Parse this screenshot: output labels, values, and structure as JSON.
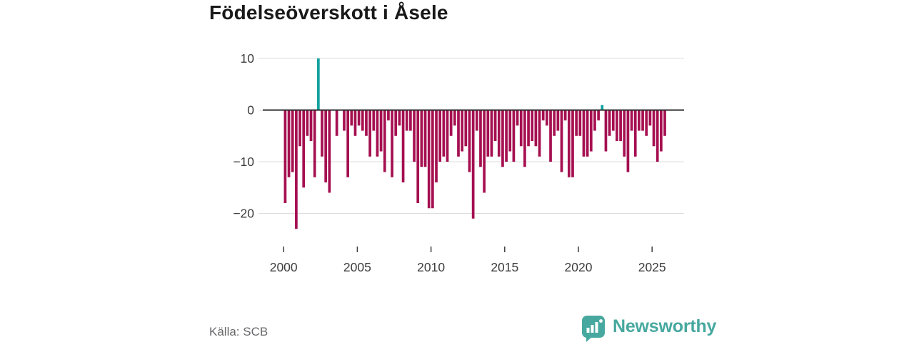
{
  "header": {
    "title": "Födelseöverskott i Åsele"
  },
  "footer": {
    "source_label": "Källa: SCB",
    "brand": {
      "name": "Newsworthy",
      "color": "#47a89f"
    }
  },
  "chart_data": {
    "type": "bar",
    "title": "Födelseöverskott i Åsele",
    "x_unit": "quarter",
    "start_year": 2000,
    "end_year": 2025,
    "x_tick_years": [
      2000,
      2005,
      2010,
      2015,
      2020,
      2025
    ],
    "y_ticks": [
      10,
      0,
      -10,
      -20
    ],
    "y_tick_labels": [
      "10",
      "0",
      "−10",
      "−20"
    ],
    "ylim": [
      -24,
      12
    ],
    "grid": true,
    "legend": false,
    "values": [
      -18,
      -13,
      -12,
      -23,
      -7,
      -15,
      -5,
      -6,
      -13,
      10,
      -9,
      -14,
      -16,
      0,
      -5,
      0,
      -4,
      -13,
      -3,
      -5,
      -3,
      -4,
      -5,
      -9,
      -4,
      -9,
      -8,
      -12,
      -2,
      -13,
      -5,
      -3,
      -14,
      -4,
      -4,
      -10,
      -18,
      -11,
      -11,
      -19,
      -19,
      -14,
      -10,
      -9,
      -10,
      -5,
      -3,
      -9,
      -8,
      -7,
      -12,
      -21,
      -4,
      -11,
      -16,
      -9,
      -9,
      -6,
      -9,
      -11,
      -10,
      -8,
      -10,
      -3,
      -7,
      -11,
      -7,
      -6,
      -7,
      -9,
      -2,
      -3,
      -10,
      -5,
      -4,
      -12,
      -2,
      -13,
      -13,
      -5,
      -5,
      -9,
      -9,
      -8,
      -4,
      -2,
      1,
      -8,
      -5,
      -4,
      -6,
      -6,
      -9,
      -12,
      -4,
      -9,
      -4,
      -4,
      -5,
      -3,
      -7,
      -10,
      -8,
      -5
    ],
    "colors": {
      "negative": "#a50f50",
      "positive": "#12a3a0",
      "gridline": "#dcdcdc",
      "axis": "#2f2f2f",
      "tick_text": "#3d3d3d"
    },
    "source": "Källa: SCB"
  }
}
